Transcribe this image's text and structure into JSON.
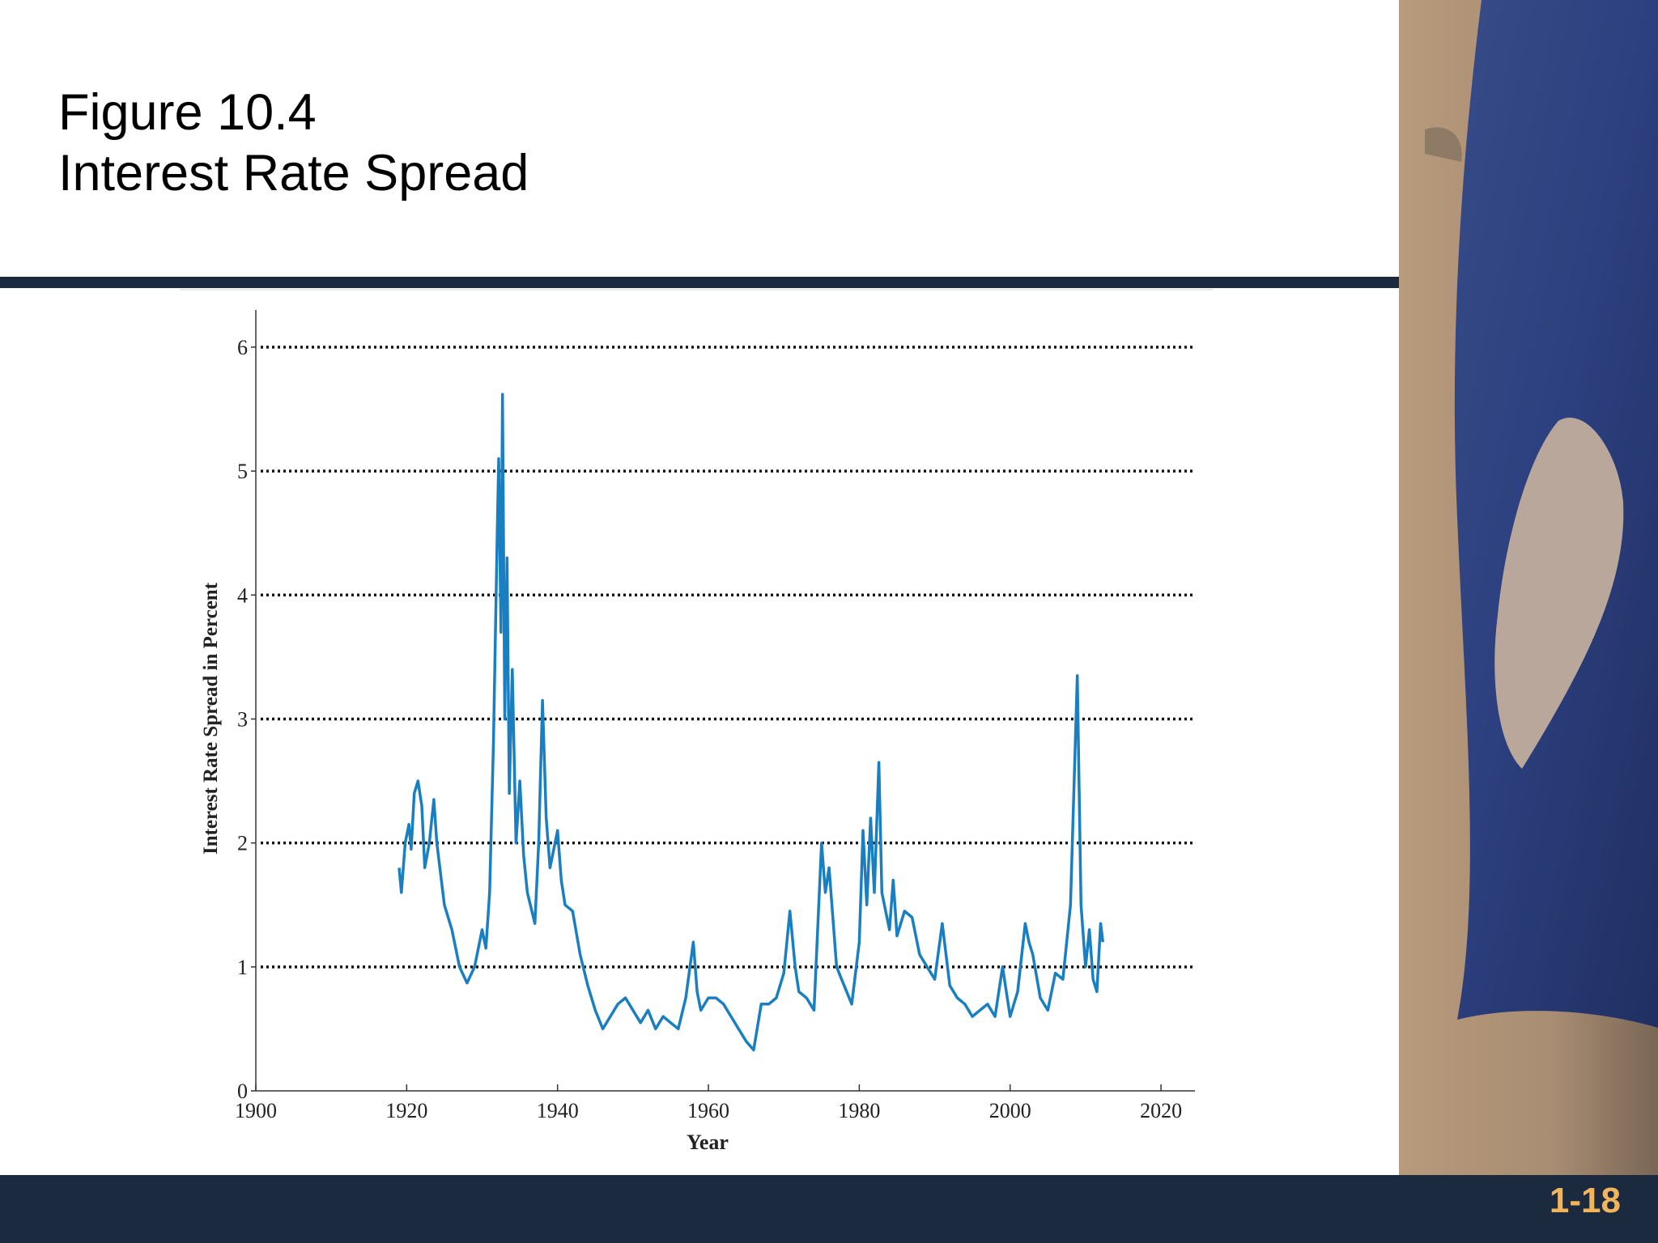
{
  "slide_number": "1-18",
  "chart_data": {
    "type": "line",
    "figure_label": "Figure 10.4",
    "title": "Interest Rate Spread",
    "x_label": "Year",
    "y_label": "Interest Rate Spread in Percent",
    "color": "#1a7fc1",
    "grid": true,
    "xlim": [
      1900,
      2024.5
    ],
    "ylim": [
      0,
      6.3
    ],
    "xticks": [
      1900,
      1920,
      1940,
      1960,
      1980,
      2000,
      2020
    ],
    "yticks": [
      0,
      1,
      2,
      3,
      4,
      5,
      6
    ],
    "x": [
      1919,
      1919.3,
      1919.8,
      1920.3,
      1920.6,
      1921,
      1921.5,
      1922,
      1922.4,
      1923,
      1923.6,
      1924,
      1925,
      1926,
      1927,
      1928,
      1929,
      1930,
      1930.5,
      1931,
      1931.5,
      1932,
      1932.2,
      1932.5,
      1932.7,
      1933,
      1933.3,
      1933.6,
      1934,
      1934.5,
      1935,
      1935.5,
      1936,
      1937,
      1937.5,
      1938,
      1938.5,
      1939,
      1940,
      1940.5,
      1941,
      1942,
      1943,
      1944,
      1945,
      1946,
      1947,
      1948,
      1949,
      1950,
      1951,
      1952,
      1953,
      1954,
      1955,
      1956,
      1957,
      1958,
      1958.5,
      1959,
      1960,
      1961,
      1962,
      1963,
      1964,
      1965,
      1966,
      1967,
      1968,
      1969,
      1970,
      1970.8,
      1971.5,
      1972,
      1973,
      1974,
      1975,
      1975.5,
      1976,
      1977,
      1978,
      1979,
      1980,
      1980.5,
      1981,
      1981.5,
      1982,
      1982.6,
      1983,
      1984,
      1984.5,
      1985,
      1986,
      1987,
      1988,
      1989,
      1990,
      1991,
      1992,
      1993,
      1994,
      1995,
      1996,
      1997,
      1998,
      1999,
      2000,
      2001,
      2002,
      2002.5,
      2003,
      2004,
      2005,
      2006,
      2007,
      2008,
      2008.9,
      2009.4,
      2010,
      2010.5,
      2011,
      2011.5,
      2012,
      2012.3
    ],
    "values": [
      1.8,
      1.6,
      2.0,
      2.15,
      1.95,
      2.4,
      2.5,
      2.3,
      1.8,
      2.0,
      2.35,
      2.0,
      1.5,
      1.3,
      1.0,
      0.87,
      1.0,
      1.3,
      1.15,
      1.6,
      2.8,
      4.5,
      5.1,
      3.7,
      5.62,
      3.0,
      4.3,
      2.4,
      3.4,
      2.0,
      2.5,
      1.9,
      1.6,
      1.35,
      2.0,
      3.15,
      2.2,
      1.8,
      2.1,
      1.7,
      1.5,
      1.45,
      1.1,
      0.85,
      0.65,
      0.5,
      0.6,
      0.7,
      0.75,
      0.65,
      0.55,
      0.65,
      0.5,
      0.6,
      0.55,
      0.5,
      0.75,
      1.2,
      0.8,
      0.65,
      0.75,
      0.75,
      0.7,
      0.6,
      0.5,
      0.4,
      0.33,
      0.7,
      0.7,
      0.75,
      0.95,
      1.45,
      1.0,
      0.8,
      0.75,
      0.65,
      2.0,
      1.6,
      1.8,
      1.0,
      0.85,
      0.7,
      1.2,
      2.1,
      1.5,
      2.2,
      1.6,
      2.65,
      1.6,
      1.3,
      1.7,
      1.25,
      1.45,
      1.4,
      1.1,
      1.0,
      0.9,
      1.35,
      0.85,
      0.75,
      0.7,
      0.6,
      0.65,
      0.7,
      0.6,
      1.0,
      0.6,
      0.8,
      1.35,
      1.2,
      1.1,
      0.75,
      0.65,
      0.95,
      0.9,
      1.5,
      3.35,
      1.5,
      1.0,
      1.3,
      0.9,
      0.8,
      1.35,
      1.2
    ]
  }
}
